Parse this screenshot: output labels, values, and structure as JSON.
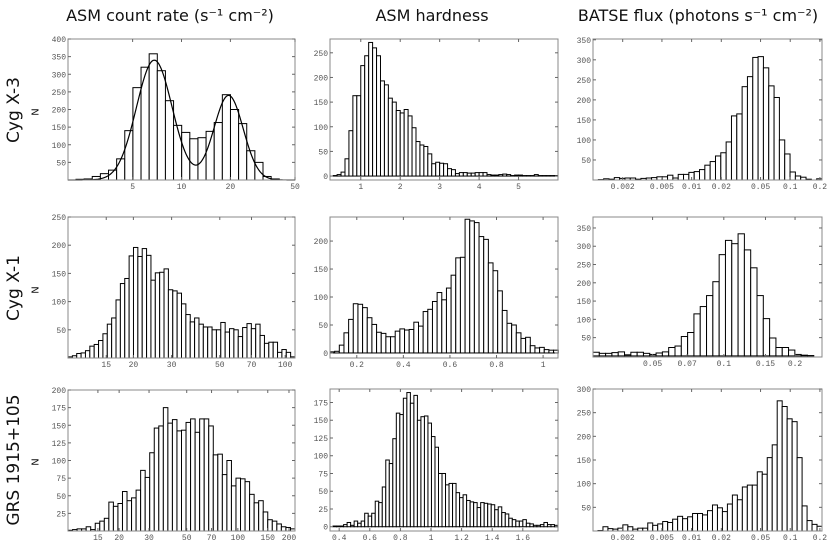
{
  "column_titles": [
    "ASM count rate (s⁻¹ cm⁻²)",
    "ASM hardness",
    "BATSE flux (photons s⁻¹ cm⁻²)"
  ],
  "row_labels": [
    "Cyg X-3",
    "Cyg X-1",
    "GRS 1915+105"
  ],
  "ylabel": "N",
  "chart_data": [
    {
      "type": "bar",
      "source": "Cyg X-3",
      "title": "ASM count rate (s⁻¹ cm⁻²)",
      "ylabel": "N",
      "xscale": "log",
      "xlim": [
        2,
        50
      ],
      "ylim": [
        0,
        400
      ],
      "xticks": [
        {
          "v": 5,
          "l": "5"
        },
        {
          "v": 10,
          "l": "10"
        },
        {
          "v": 20,
          "l": "20"
        },
        {
          "v": 50,
          "l": "50"
        }
      ],
      "yticks": [
        50,
        100,
        150,
        200,
        250,
        300,
        350,
        400
      ],
      "bins": {
        "start": 2.24,
        "end": 40,
        "values": [
          2,
          3,
          10,
          18,
          28,
          60,
          140,
          262,
          320,
          358,
          310,
          225,
          155,
          135,
          117,
          120,
          138,
          163,
          242,
          200,
          160,
          83,
          50,
          10,
          3
        ]
      },
      "fit": {
        "type": "double-gaussian-log",
        "components": [
          {
            "amplitude": 340,
            "center": 6.8,
            "sigma_dex": 0.11
          },
          {
            "amplitude": 240,
            "center": 19.5,
            "sigma_dex": 0.09
          }
        ]
      }
    },
    {
      "type": "bar",
      "source": "Cyg X-3",
      "title": "ASM hardness",
      "xscale": "linear",
      "xlim": [
        0.22,
        6.0
      ],
      "ylim": [
        -8,
        278
      ],
      "xticks": [
        {
          "v": 1,
          "l": "1"
        },
        {
          "v": 2,
          "l": "2"
        },
        {
          "v": 3,
          "l": "3"
        },
        {
          "v": 4,
          "l": "4"
        },
        {
          "v": 5,
          "l": "5"
        }
      ],
      "yticks": [
        0,
        50,
        100,
        150,
        200,
        250
      ],
      "bins": {
        "start": 0.3,
        "end": 6.0,
        "values": [
          1,
          3,
          8,
          35,
          92,
          163,
          163,
          224,
          244,
          271,
          260,
          244,
          193,
          185,
          158,
          150,
          133,
          128,
          135,
          122,
          98,
          70,
          63,
          60,
          45,
          25,
          28,
          26,
          25,
          15,
          13,
          5,
          7,
          7,
          6,
          6,
          7,
          7,
          7,
          3,
          2,
          2,
          3,
          4,
          3,
          1,
          2,
          2,
          1,
          1,
          1,
          3,
          1,
          1,
          1,
          1,
          1
        ]
      }
    },
    {
      "type": "bar",
      "source": "Cyg X-3",
      "title": "BATSE flux (photons s⁻¹ cm⁻²)",
      "xscale": "log",
      "xlim": [
        0.001,
        0.21
      ],
      "ylim": [
        0,
        352
      ],
      "xticks": [
        {
          "v": 0.002,
          "l": "0.002"
        },
        {
          "v": 0.005,
          "l": "0.005"
        },
        {
          "v": 0.01,
          "l": "0.01"
        },
        {
          "v": 0.02,
          "l": "0.02"
        },
        {
          "v": 0.05,
          "l": "0.05"
        },
        {
          "v": 0.1,
          "l": "0.1"
        },
        {
          "v": 0.2,
          "l": "0.2"
        }
      ],
      "yticks": [
        50,
        100,
        150,
        200,
        250,
        300,
        350
      ],
      "bins": {
        "start": 0.001,
        "end": 0.21,
        "values": [
          0,
          1,
          3,
          2,
          6,
          4,
          5,
          5,
          2,
          4,
          5,
          6,
          8,
          8,
          12,
          5,
          14,
          14,
          19,
          21,
          26,
          37,
          46,
          60,
          68,
          95,
          160,
          165,
          233,
          258,
          306,
          308,
          280,
          235,
          206,
          100,
          65,
          20,
          10,
          7,
          2,
          0,
          3
        ]
      }
    },
    {
      "type": "bar",
      "source": "Cyg X-1",
      "title": "ASM count rate (s⁻¹ cm⁻²)",
      "ylabel": "N",
      "xscale": "log",
      "xlim": [
        10,
        111
      ],
      "ylim": [
        0,
        250
      ],
      "xticks": [
        {
          "v": 15,
          "l": "15"
        },
        {
          "v": 20,
          "l": "20"
        },
        {
          "v": 30,
          "l": "30"
        },
        {
          "v": 50,
          "l": "50"
        },
        {
          "v": 70,
          "l": "70"
        },
        {
          "v": 100,
          "l": "100"
        }
      ],
      "yticks": [
        50,
        100,
        150,
        200,
        250
      ],
      "bins": {
        "start": 10,
        "end": 111,
        "values": [
          2,
          4,
          8,
          9,
          13,
          21,
          24,
          31,
          43,
          60,
          71,
          103,
          132,
          141,
          181,
          196,
          180,
          194,
          182,
          138,
          151,
          152,
          158,
          121,
          119,
          115,
          96,
          77,
          64,
          71,
          60,
          55,
          55,
          50,
          50,
          63,
          46,
          52,
          50,
          38,
          54,
          61,
          52,
          60,
          40,
          26,
          28,
          28,
          10,
          15,
          10,
          2
        ]
      }
    },
    {
      "type": "bar",
      "source": "Cyg X-1",
      "title": "ASM hardness",
      "xscale": "linear",
      "xlim": [
        0.085,
        1.064
      ],
      "ylim": [
        -9,
        243
      ],
      "xticks": [
        {
          "v": 0.2,
          "l": "0.2"
        },
        {
          "v": 0.4,
          "l": "0.4"
        },
        {
          "v": 0.6,
          "l": "0.6"
        },
        {
          "v": 0.8,
          "l": "0.8"
        },
        {
          "v": 1,
          "l": "1"
        }
      ],
      "yticks": [
        0,
        50,
        100,
        150,
        200
      ],
      "bins": {
        "start": 0.085,
        "end": 1.065,
        "values": [
          2,
          3,
          14,
          36,
          60,
          88,
          87,
          81,
          63,
          51,
          37,
          35,
          29,
          29,
          39,
          43,
          41,
          42,
          55,
          48,
          74,
          78,
          92,
          108,
          95,
          116,
          139,
          170,
          171,
          239,
          236,
          233,
          208,
          203,
          161,
          147,
          111,
          76,
          53,
          50,
          36,
          26,
          28,
          13,
          9,
          10,
          6,
          5,
          5
        ]
      }
    },
    {
      "type": "bar",
      "source": "Cyg X-1",
      "title": "BATSE flux (photons s⁻¹ cm⁻²)",
      "xscale": "log",
      "xlim": [
        0.028,
        0.26
      ],
      "ylim": [
        -3,
        380
      ],
      "xticks": [
        {
          "v": 0.05,
          "l": "0.05"
        },
        {
          "v": 0.07,
          "l": "0.07"
        },
        {
          "v": 0.1,
          "l": "0.1"
        },
        {
          "v": 0.15,
          "l": "0.15"
        },
        {
          "v": 0.2,
          "l": "0.2"
        }
      ],
      "yticks": [
        50,
        100,
        150,
        200,
        250,
        300,
        350
      ],
      "bins": {
        "start": 0.028,
        "end": 0.24,
        "values": [
          10,
          7,
          7,
          9,
          11,
          3,
          10,
          10,
          7,
          4,
          8,
          11,
          23,
          27,
          53,
          64,
          115,
          135,
          165,
          203,
          277,
          316,
          307,
          334,
          290,
          241,
          165,
          102,
          49,
          23,
          23,
          16,
          4,
          2,
          1
        ]
      }
    },
    {
      "type": "bar",
      "source": "GRS 1915+105",
      "title": "ASM count rate (s⁻¹ cm⁻²)",
      "ylabel": "N",
      "xscale": "log",
      "xlim": [
        10,
        217
      ],
      "ylim": [
        0,
        200
      ],
      "xticks": [
        {
          "v": 15,
          "l": "15"
        },
        {
          "v": 20,
          "l": "20"
        },
        {
          "v": 30,
          "l": "30"
        },
        {
          "v": 50,
          "l": "50"
        },
        {
          "v": 70,
          "l": "70"
        },
        {
          "v": 100,
          "l": "100"
        },
        {
          "v": 150,
          "l": "150"
        },
        {
          "v": 200,
          "l": "200"
        }
      ],
      "yticks": [
        25,
        50,
        75,
        100,
        125,
        150,
        175,
        200
      ],
      "bins": {
        "start": 10,
        "end": 217,
        "values": [
          1,
          2,
          3,
          3,
          6,
          2,
          11,
          14,
          18,
          41,
          35,
          39,
          56,
          43,
          47,
          58,
          86,
          76,
          111,
          146,
          149,
          175,
          153,
          158,
          142,
          143,
          154,
          159,
          140,
          159,
          159,
          149,
          108,
          109,
          80,
          100,
          64,
          75,
          74,
          70,
          52,
          40,
          43,
          27,
          16,
          14,
          10,
          6,
          5,
          3
        ]
      }
    },
    {
      "type": "bar",
      "source": "GRS 1915+105",
      "title": "ASM hardness",
      "xscale": "linear",
      "xlim": [
        0.34,
        1.83
      ],
      "ylim": [
        -6,
        194
      ],
      "xticks": [
        {
          "v": 0.4,
          "l": "0.4"
        },
        {
          "v": 0.6,
          "l": "0.6"
        },
        {
          "v": 0.8,
          "l": "0.8"
        },
        {
          "v": 1,
          "l": "1"
        },
        {
          "v": 1.2,
          "l": "1.2"
        },
        {
          "v": 1.4,
          "l": "1.4"
        },
        {
          "v": 1.6,
          "l": "1.6"
        }
      ],
      "yticks": [
        0,
        25,
        50,
        75,
        100,
        125,
        150,
        175
      ],
      "bins": {
        "start": 0.36,
        "end": 1.83,
        "values": [
          1,
          1,
          1,
          3,
          6,
          2,
          8,
          5,
          8,
          19,
          15,
          19,
          36,
          34,
          56,
          94,
          89,
          124,
          160,
          158,
          181,
          189,
          174,
          185,
          150,
          155,
          156,
          146,
          127,
          112,
          75,
          75,
          59,
          61,
          61,
          48,
          41,
          45,
          37,
          35,
          34,
          27,
          34,
          33,
          32,
          31,
          24,
          28,
          20,
          18,
          12,
          10,
          8,
          8,
          10,
          5,
          4,
          2,
          2,
          3,
          6,
          3,
          3,
          2
        ]
      }
    },
    {
      "type": "bar",
      "source": "GRS 1915+105",
      "title": "BATSE flux (photons s⁻¹ cm⁻²)",
      "xscale": "log",
      "xlim": [
        0.001,
        0.21
      ],
      "ylim": [
        0,
        300
      ],
      "xticks": [
        {
          "v": 0.002,
          "l": "0.002"
        },
        {
          "v": 0.005,
          "l": "0.005"
        },
        {
          "v": 0.01,
          "l": "0.01"
        },
        {
          "v": 0.02,
          "l": "0.02"
        },
        {
          "v": 0.05,
          "l": "0.05"
        },
        {
          "v": 0.1,
          "l": "0.1"
        },
        {
          "v": 0.2,
          "l": "0.2"
        }
      ],
      "yticks": [
        50,
        100,
        150,
        200,
        250,
        300
      ],
      "bins": {
        "start": 0.001,
        "end": 0.21,
        "values": [
          0,
          1,
          9,
          5,
          4,
          6,
          13,
          9,
          4,
          6,
          6,
          17,
          12,
          15,
          20,
          18,
          25,
          31,
          26,
          30,
          37,
          37,
          34,
          43,
          55,
          49,
          41,
          57,
          76,
          66,
          93,
          97,
          97,
          125,
          120,
          155,
          182,
          275,
          263,
          237,
          231,
          155,
          53,
          22,
          14,
          10
        ]
      }
    }
  ]
}
